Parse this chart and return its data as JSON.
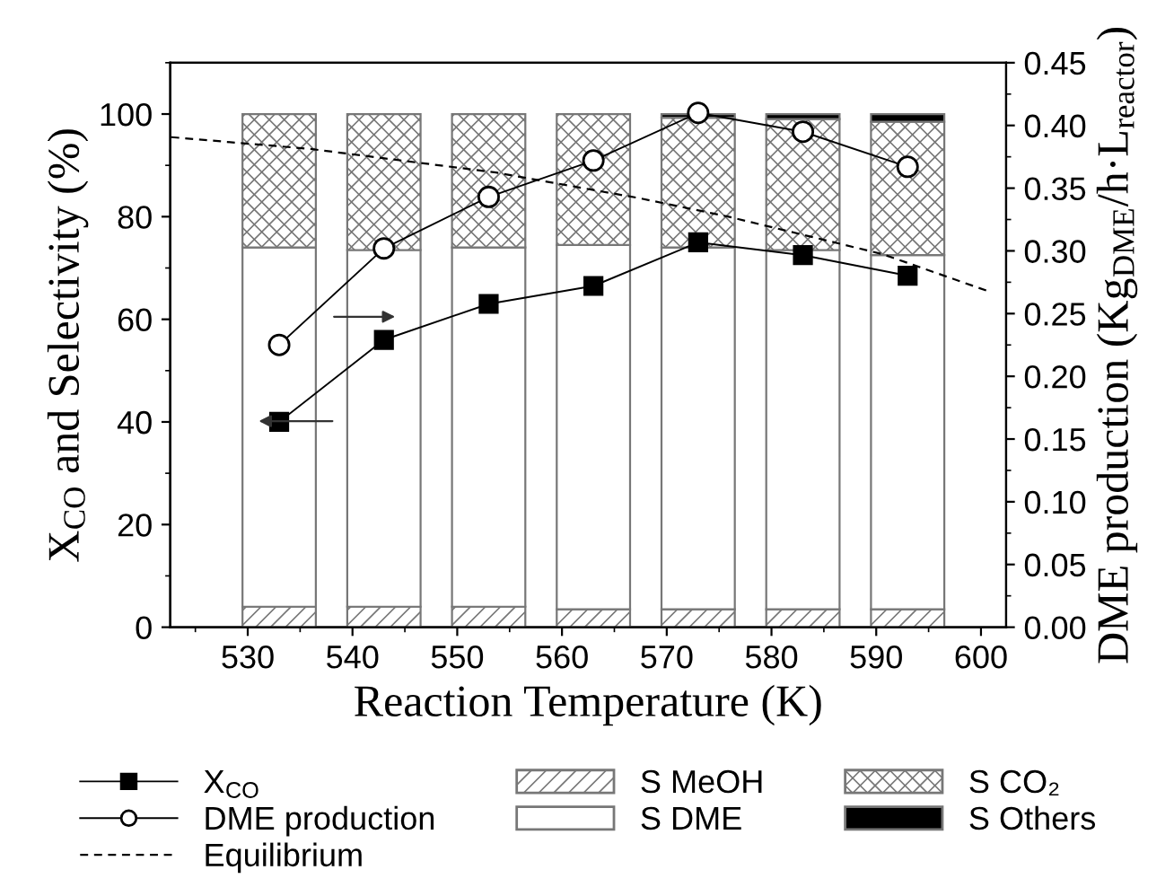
{
  "chart_data": {
    "type": "bar",
    "stacked": true,
    "xlabel": "Reaction Temperature (K)",
    "ylabel": "X$_{CO}$ and Selectivity (%)",
    "y2label": "DME production (Kg$_{DME}$/h·L$_{reactor}$)",
    "x": [
      533,
      543,
      553,
      563,
      573,
      583,
      593
    ],
    "series": [
      {
        "name": "S MeOH",
        "color": "#777777",
        "values": [
          4,
          4,
          4,
          3.5,
          3.5,
          3.5,
          3.5
        ]
      },
      {
        "name": "S DME",
        "color": "#ffffff",
        "values": [
          70,
          69.5,
          70,
          71,
          70.5,
          70,
          69
        ]
      },
      {
        "name": "S CO₂",
        "color": "#777777",
        "values": [
          26,
          26.5,
          26,
          25.5,
          25.3,
          25.5,
          26
        ]
      },
      {
        "name": "S Others",
        "color": "#000000",
        "values": [
          null,
          null,
          null,
          null,
          0.7,
          1,
          1.5
        ]
      },
      {
        "name": "X$_{CO}$",
        "type": "line",
        "color": "#000000",
        "marker": "square",
        "values": [
          40,
          56,
          63,
          66.5,
          75,
          72.5,
          68.5
        ]
      },
      {
        "name": "DME production",
        "type": "line",
        "axis": "y2",
        "color": "#000000",
        "marker": "circle",
        "values": [
          0.225,
          0.302,
          0.343,
          0.372,
          0.41,
          0.395,
          0.367
        ]
      },
      {
        "name": "Equilibrium",
        "type": "line",
        "color": "#000000",
        "line_style": "dashed",
        "x": [
          522.7,
          529,
          536,
          553.7,
          567.4,
          575.9,
          590.6,
          600.8
        ],
        "values": [
          95.5,
          94.4,
          93.2,
          88.6,
          83.6,
          80,
          72.7,
          65.4
        ]
      }
    ],
    "xlim": [
      522.6,
      602.4
    ],
    "xticks": [
      530,
      540,
      550,
      560,
      570,
      580,
      590,
      600
    ],
    "ylim": [
      0,
      110
    ],
    "yticks": [
      0,
      20,
      40,
      60,
      80,
      100
    ],
    "y2lim": [
      0,
      0.45
    ],
    "y2ticks": [
      {
        "value": 0,
        "label": "0.00"
      },
      {
        "value": 0.05,
        "label": "0.05"
      },
      {
        "value": 0.1,
        "label": "0.10"
      },
      {
        "value": 0.15,
        "label": "0.15"
      },
      {
        "value": 0.2,
        "label": "0.20"
      },
      {
        "value": 0.25,
        "label": "0.25"
      },
      {
        "value": 0.3,
        "label": "0.30"
      },
      {
        "value": 0.35,
        "label": "0.35"
      },
      {
        "value": 0.4,
        "label": "0.40"
      },
      {
        "value": 0.45,
        "label": "0.45"
      }
    ],
    "legend": "bottom",
    "grid": false
  }
}
